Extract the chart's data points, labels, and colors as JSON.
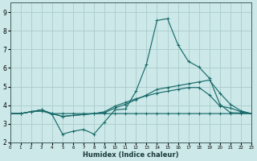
{
  "xlabel": "Humidex (Indice chaleur)",
  "bg_color": "#cce8e8",
  "grid_color": "#aacccc",
  "line_color": "#1a6b6b",
  "xlim": [
    0,
    23
  ],
  "ylim": [
    2,
    9.5
  ],
  "xticks": [
    0,
    1,
    2,
    3,
    4,
    5,
    6,
    7,
    8,
    9,
    10,
    11,
    12,
    13,
    14,
    15,
    16,
    17,
    18,
    19,
    20,
    21,
    22,
    23
  ],
  "yticks": [
    2,
    3,
    4,
    5,
    6,
    7,
    8,
    9
  ],
  "series": [
    {
      "x": [
        0,
        1,
        2,
        3,
        4,
        5,
        6,
        7,
        8,
        9,
        10,
        11,
        12,
        13,
        14,
        15,
        16,
        17,
        18,
        19,
        20,
        21,
        22,
        23
      ],
      "y": [
        3.55,
        3.55,
        3.65,
        3.68,
        3.55,
        3.55,
        3.55,
        3.55,
        3.55,
        3.55,
        3.55,
        3.55,
        3.55,
        3.55,
        3.55,
        3.55,
        3.55,
        3.55,
        3.55,
        3.55,
        3.55,
        3.55,
        3.55,
        3.55
      ]
    },
    {
      "x": [
        0,
        1,
        2,
        3,
        4,
        5,
        6,
        7,
        8,
        9,
        10,
        11,
        12,
        13,
        14,
        15,
        16,
        17,
        18,
        19,
        20,
        21,
        22,
        23
      ],
      "y": [
        3.55,
        3.55,
        3.65,
        3.75,
        3.5,
        2.45,
        2.6,
        2.7,
        2.45,
        3.1,
        3.75,
        3.8,
        4.75,
        6.2,
        8.55,
        8.65,
        7.25,
        6.35,
        6.05,
        5.45,
        4.05,
        3.6,
        3.58,
        3.55
      ]
    },
    {
      "x": [
        0,
        1,
        2,
        3,
        4,
        5,
        6,
        7,
        8,
        9,
        10,
        11,
        12,
        13,
        14,
        15,
        16,
        17,
        18,
        19,
        20,
        21,
        22,
        23
      ],
      "y": [
        3.55,
        3.55,
        3.65,
        3.75,
        3.55,
        3.4,
        3.45,
        3.5,
        3.55,
        3.6,
        3.85,
        4.05,
        4.3,
        4.55,
        4.85,
        4.95,
        5.05,
        5.15,
        5.25,
        5.35,
        4.65,
        4.05,
        3.7,
        3.55
      ]
    },
    {
      "x": [
        0,
        1,
        2,
        3,
        4,
        5,
        6,
        7,
        8,
        9,
        10,
        11,
        12,
        13,
        14,
        15,
        16,
        17,
        18,
        19,
        20,
        21,
        22,
        23
      ],
      "y": [
        3.55,
        3.55,
        3.65,
        3.75,
        3.55,
        3.4,
        3.45,
        3.5,
        3.55,
        3.65,
        3.95,
        4.15,
        4.35,
        4.5,
        4.65,
        4.75,
        4.85,
        4.95,
        4.95,
        4.55,
        3.95,
        3.85,
        3.65,
        3.55
      ]
    }
  ]
}
